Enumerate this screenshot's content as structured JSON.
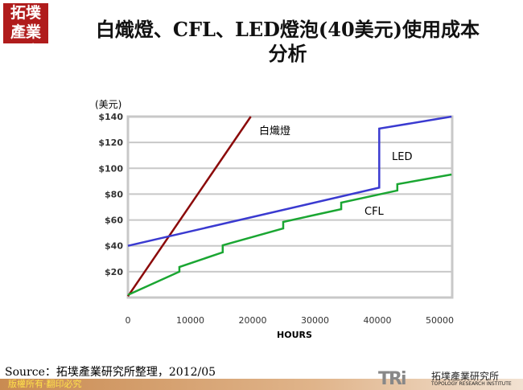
{
  "header": {
    "logo_text": "拓墣產業研究所",
    "title_line1": "白熾燈、CFL、LED燈泡(40美元)使用成本",
    "title_line2": "分析"
  },
  "chart_data": {
    "type": "line",
    "title": "",
    "xlabel": "HOURS",
    "ylabel": "(美元)",
    "xlim": [
      0,
      52000
    ],
    "ylim": [
      0,
      140
    ],
    "xticks": [
      "0",
      "10000",
      "20000",
      "30000",
      "40000",
      "50000"
    ],
    "xtick_values": [
      0,
      10000,
      20000,
      30000,
      40000,
      50000
    ],
    "yticks": [
      "$20",
      "$40",
      "$60",
      "$80",
      "$100",
      "$120",
      "$140"
    ],
    "ytick_values": [
      20,
      40,
      60,
      80,
      100,
      120,
      140
    ],
    "grid": true,
    "series": [
      {
        "name": "白熾燈",
        "color": "#8b0a0a",
        "x": [
          0,
          19700
        ],
        "y": [
          1,
          140
        ]
      },
      {
        "name": "LED",
        "color": "#3a3ad0",
        "x": [
          0,
          40300,
          40300,
          51900
        ],
        "y": [
          40,
          85,
          130.7,
          140
        ]
      },
      {
        "name": "CFL",
        "color": "#1aa632",
        "x": [
          0,
          8250,
          8250,
          15200,
          15200,
          24900,
          24900,
          34200,
          34200,
          43200,
          43200,
          51900
        ],
        "y": [
          2,
          20,
          23.6,
          35,
          40.4,
          53.5,
          58.5,
          68.4,
          73.4,
          82.8,
          87.7,
          95.2
        ]
      }
    ]
  },
  "footer": {
    "source": "Source：拓墣產業研究所整理，2012/05",
    "copyright": "版權所有‧翻印必究",
    "brand_mark": "TRi",
    "brand_cn": "拓墣產業研究所",
    "brand_en": "TOPOLOGY RESEARCH INSTITUTE"
  }
}
